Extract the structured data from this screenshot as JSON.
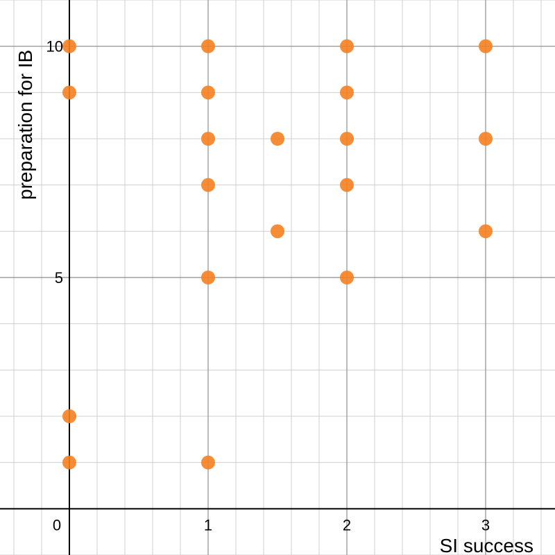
{
  "chart_data": {
    "type": "scatter",
    "title": "",
    "xlabel": "SI success",
    "ylabel": "preparation for IB",
    "xlim": [
      -0.5,
      3.5
    ],
    "ylim": [
      -1,
      11
    ],
    "xticks": [
      0,
      1,
      2,
      3
    ],
    "xtick_labels": [
      "0",
      "1",
      "2",
      "3"
    ],
    "yticks": [
      5,
      10
    ],
    "ytick_labels": [
      "5",
      "10"
    ],
    "grid": true,
    "minor_grid_step_x": 0.2,
    "minor_grid_step_y": 1,
    "legend": "none",
    "marker_color": "#f57f20",
    "series": [
      {
        "x": [
          0,
          0,
          0,
          0,
          1,
          1,
          1,
          1,
          1,
          1,
          1.5,
          1.5,
          2,
          2,
          2,
          2,
          2,
          3,
          3,
          3
        ],
        "y": [
          10,
          9,
          2,
          1,
          10,
          9,
          8,
          7,
          5,
          1,
          8,
          6,
          10,
          9,
          8,
          7,
          5,
          10,
          8,
          6
        ]
      }
    ]
  }
}
